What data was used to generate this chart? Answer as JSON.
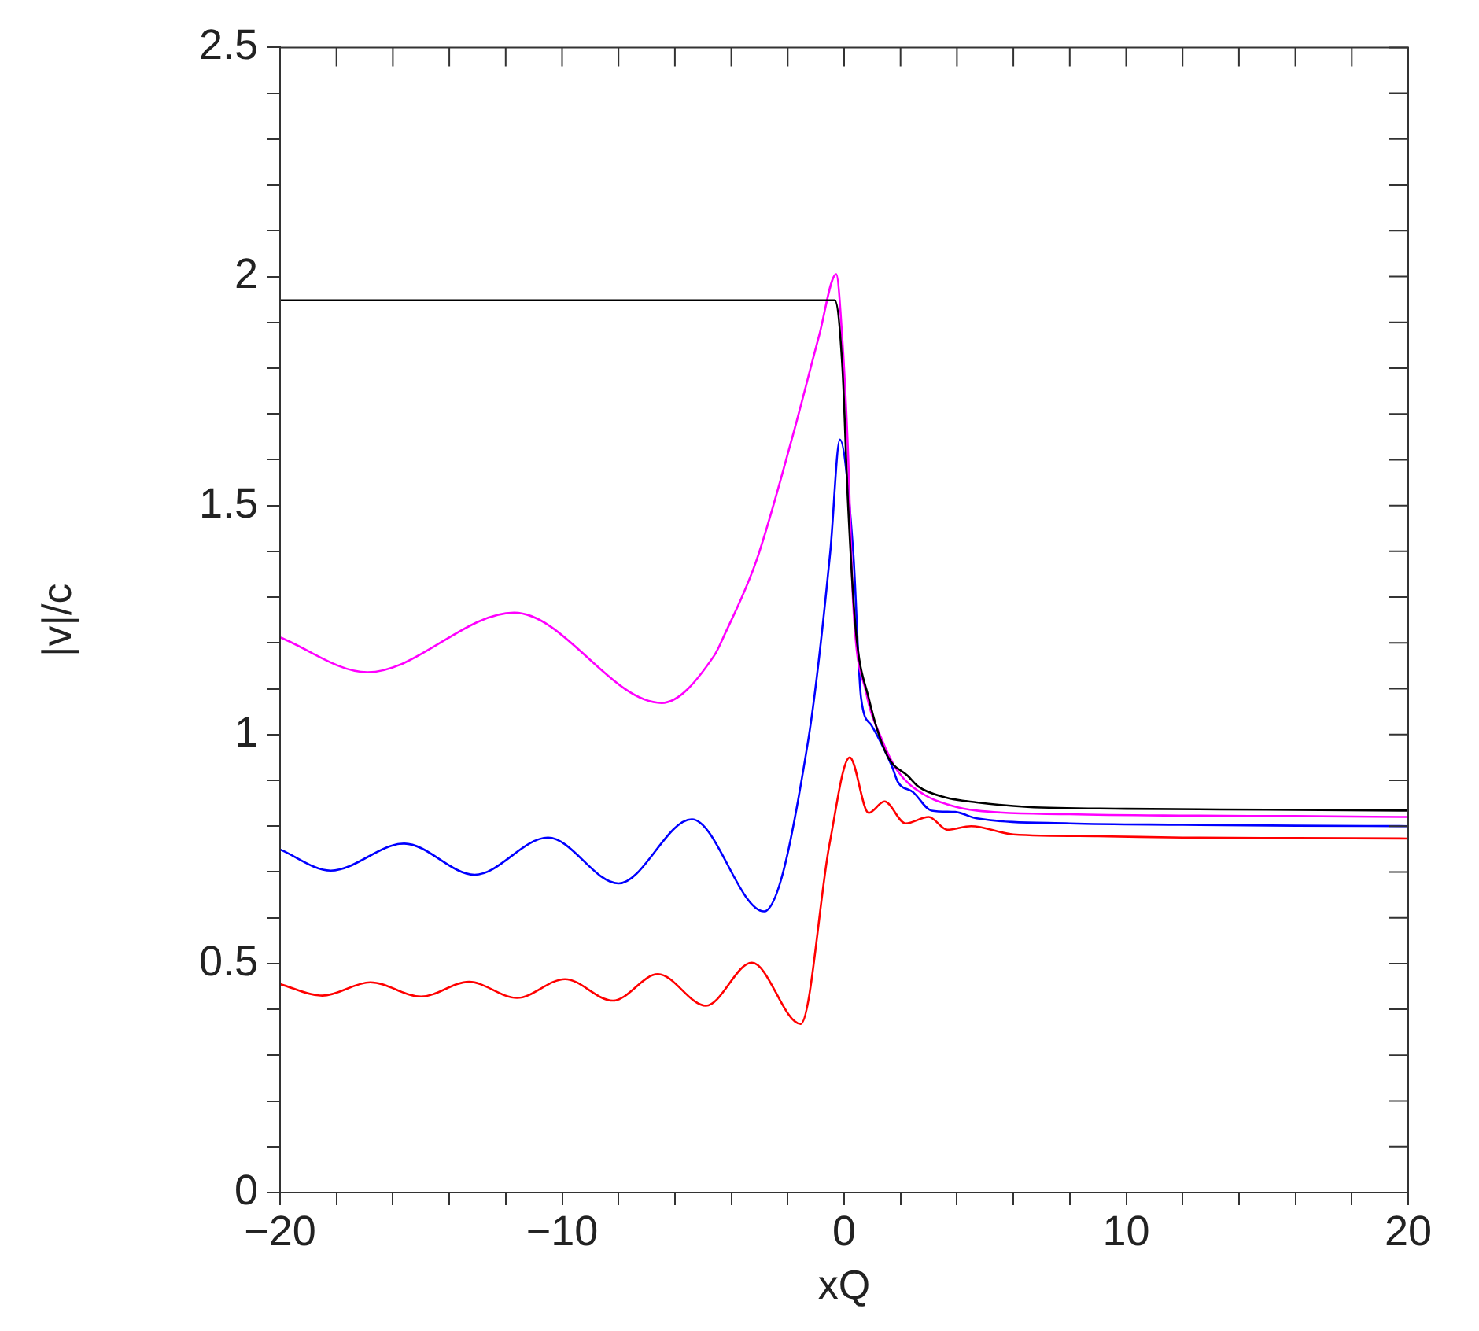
{
  "chart_data": {
    "type": "line",
    "xlabel": "xQ",
    "ylabel": "|v|/c",
    "xlim": [
      -20,
      20
    ],
    "ylim": [
      0,
      2.5
    ],
    "xticks": [
      -20,
      {
        "value": -18,
        "label": null
      },
      {
        "value": -16,
        "label": null
      },
      {
        "value": -14,
        "label": null
      },
      {
        "value": -12,
        "label": null
      },
      -10,
      {
        "value": -8,
        "label": null
      },
      {
        "value": -6,
        "label": null
      },
      {
        "value": -4,
        "label": null
      },
      {
        "value": -2,
        "label": null
      },
      0,
      {
        "value": 2,
        "label": null
      },
      {
        "value": 4,
        "label": null
      },
      {
        "value": 6,
        "label": null
      },
      {
        "value": 8,
        "label": null
      },
      10,
      {
        "value": 12,
        "label": null
      },
      {
        "value": 14,
        "label": null
      },
      {
        "value": 16,
        "label": null
      },
      {
        "value": 18,
        "label": null
      },
      20
    ],
    "yticks": [
      0,
      {
        "value": 0.1,
        "label": null
      },
      {
        "value": 0.2,
        "label": null
      },
      {
        "value": 0.3,
        "label": null
      },
      {
        "value": 0.4,
        "label": null
      },
      0.5,
      {
        "value": 0.6,
        "label": null
      },
      {
        "value": 0.7,
        "label": null
      },
      {
        "value": 0.8,
        "label": null
      },
      {
        "value": 0.9,
        "label": null
      },
      1,
      {
        "value": 1.1,
        "label": null
      },
      {
        "value": 1.2,
        "label": null
      },
      {
        "value": 1.3,
        "label": null
      },
      {
        "value": 1.4,
        "label": null
      },
      1.5,
      {
        "value": 1.6,
        "label": null
      },
      {
        "value": 1.7,
        "label": null
      },
      {
        "value": 1.8,
        "label": null
      },
      {
        "value": 1.9,
        "label": null
      },
      2,
      {
        "value": 2.1,
        "label": null
      },
      {
        "value": 2.2,
        "label": null
      },
      {
        "value": 2.3,
        "label": null
      },
      {
        "value": 2.4,
        "label": null
      },
      2.5
    ],
    "grid": false,
    "legend": false,
    "marker": "none",
    "line_style": "solid",
    "series": [
      {
        "color": "#000000",
        "x": [
          -20,
          -0.33,
          -0.06,
          0.13,
          0.41,
          0.87,
          1.52,
          2.27,
          2.64,
          3.57,
          4.7,
          6.5,
          10,
          15,
          20
        ],
        "values": [
          1.948,
          1.948,
          1.8,
          1.515,
          1.23,
          1.08,
          0.955,
          0.909,
          0.886,
          0.863,
          0.852,
          0.842,
          0.838,
          0.836,
          0.834
        ]
      },
      {
        "color": "#ff00ff",
        "x": [
          -20,
          -16.9,
          -11.7,
          -6.47,
          -4.61,
          -4.24,
          -3.12,
          -1.82,
          -0.89,
          -0.28,
          -0.06,
          0.13,
          0.32,
          0.78,
          1.34,
          1.9,
          2.83,
          3.75,
          4.7,
          8,
          12,
          16,
          20
        ],
        "values": [
          1.212,
          1.136,
          1.266,
          1.069,
          1.172,
          1.218,
          1.378,
          1.653,
          1.87,
          2.005,
          1.859,
          1.63,
          1.287,
          1.092,
          0.989,
          0.92,
          0.869,
          0.846,
          0.834,
          0.826,
          0.823,
          0.822,
          0.82
        ]
      },
      {
        "color": "#0000ff",
        "x": [
          -20,
          -18.2,
          -15.6,
          -13.1,
          -10.5,
          -8,
          -5.4,
          -2.84,
          -1.27,
          -0.49,
          -0.15,
          0.32,
          0.6,
          0.97,
          1.7,
          1.9,
          2.45,
          3.1,
          3.94,
          4.7,
          8,
          12,
          16,
          20
        ],
        "values": [
          0.749,
          0.703,
          0.762,
          0.694,
          0.775,
          0.675,
          0.815,
          0.614,
          0.989,
          1.4,
          1.644,
          1.4,
          1.08,
          1.02,
          0.93,
          0.897,
          0.874,
          0.834,
          0.831,
          0.817,
          0.806,
          0.803,
          0.801,
          0.8
        ]
      },
      {
        "color": "#ff0000",
        "x": [
          -20,
          -18.5,
          -16.8,
          -15,
          -13.3,
          -11.6,
          -9.9,
          -8.2,
          -6.6,
          -4.9,
          -3.27,
          -1.54,
          -0.52,
          0.2,
          0.87,
          1.43,
          2.18,
          3,
          3.66,
          4.5,
          6,
          9,
          12,
          16,
          20
        ],
        "values": [
          0.455,
          0.43,
          0.459,
          0.428,
          0.46,
          0.425,
          0.466,
          0.419,
          0.477,
          0.408,
          0.502,
          0.368,
          0.76,
          0.95,
          0.829,
          0.854,
          0.806,
          0.82,
          0.792,
          0.8,
          0.782,
          0.778,
          0.775,
          0.774,
          0.773
        ]
      }
    ]
  }
}
